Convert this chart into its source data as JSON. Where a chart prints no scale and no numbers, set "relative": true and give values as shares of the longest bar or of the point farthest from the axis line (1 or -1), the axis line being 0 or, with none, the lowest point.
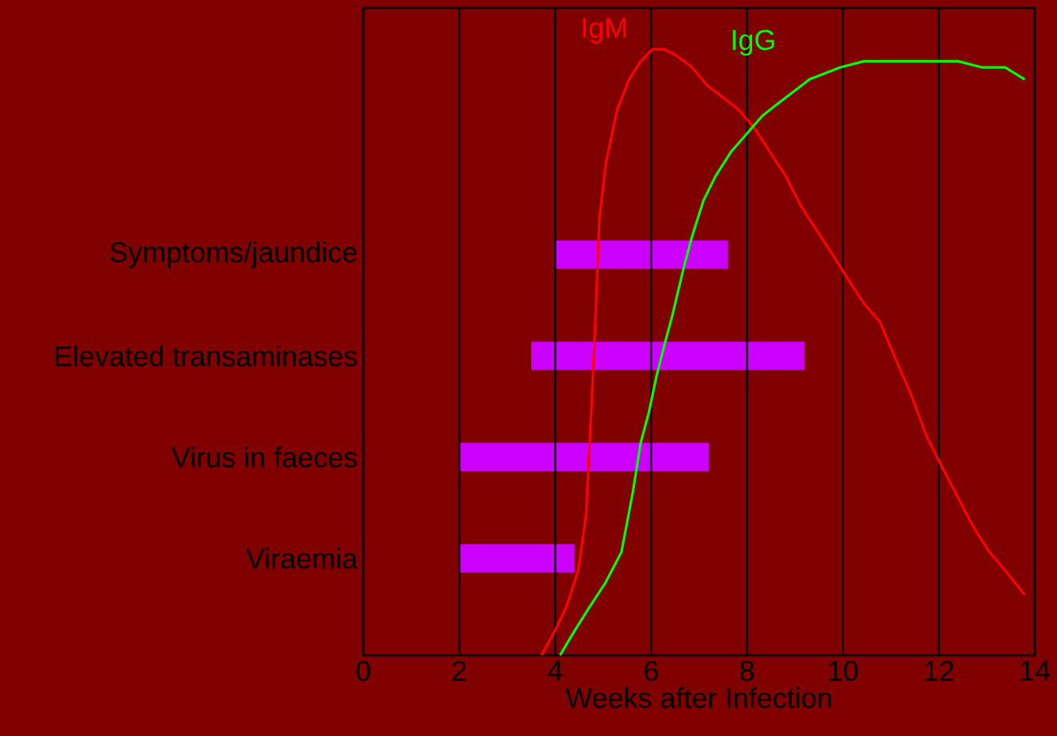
{
  "chart_data": [
    {
      "type": "bar",
      "orientation": "horizontal",
      "xlabel": "Weeks after Infection",
      "categories": [
        "Symptoms/jaundice",
        "Elevated transaminases",
        "Virus in faeces",
        "Viraemia"
      ],
      "base": [
        4,
        3.5,
        2,
        2
      ],
      "values": [
        3.6,
        5.7,
        5.2,
        2.4
      ],
      "color": "#cc00ff",
      "xlim": [
        0,
        14
      ],
      "xticks": [
        0,
        2,
        4,
        6,
        8,
        10,
        12,
        14
      ]
    },
    {
      "type": "line",
      "relative": true,
      "xlim": [
        0,
        14
      ],
      "xticks": [
        0,
        2,
        4,
        6,
        8,
        10,
        12,
        14
      ],
      "grid": "x",
      "tick_labels": false,
      "series": [
        {
          "name": "IgM",
          "color": "#ff0000",
          "x": [
            3.71,
            3.99,
            4.23,
            4.48,
            4.64,
            4.75,
            4.84,
            4.92,
            5.05,
            5.29,
            5.54,
            5.78,
            6.03,
            6.27,
            6.52,
            6.85,
            7.17,
            7.5,
            7.83,
            8.15,
            8.48,
            8.81,
            9.13,
            9.46,
            9.79,
            10.11,
            10.44,
            10.77,
            11.09,
            11.42,
            11.75,
            12.07,
            12.4,
            12.73,
            13.06,
            13.38,
            13.79
          ],
          "values": [
            0,
            0.04,
            0.08,
            0.14,
            0.23,
            0.4,
            0.56,
            0.72,
            0.81,
            0.9,
            0.95,
            0.98,
            1,
            1,
            0.99,
            0.97,
            0.94,
            0.92,
            0.9,
            0.87,
            0.83,
            0.79,
            0.74,
            0.7,
            0.66,
            0.62,
            0.58,
            0.55,
            0.49,
            0.43,
            0.36,
            0.31,
            0.26,
            0.21,
            0.17,
            0.14,
            0.1
          ]
        },
        {
          "name": "IgG",
          "color": "#00ff00",
          "x": [
            4.1,
            4.4,
            4.72,
            5.05,
            5.38,
            5.62,
            5.78,
            5.95,
            6.11,
            6.27,
            6.44,
            6.68,
            6.85,
            7.09,
            7.34,
            7.66,
            7.99,
            8.32,
            8.64,
            8.97,
            9.3,
            9.62,
            9.95,
            10.44,
            10.93,
            11.42,
            11.91,
            12.4,
            12.89,
            13.38,
            13.79
          ],
          "values": [
            0,
            0.04,
            0.08,
            0.12,
            0.17,
            0.27,
            0.35,
            0.4,
            0.46,
            0.51,
            0.56,
            0.64,
            0.69,
            0.75,
            0.79,
            0.83,
            0.86,
            0.89,
            0.91,
            0.93,
            0.95,
            0.96,
            0.97,
            0.98,
            0.98,
            0.98,
            0.98,
            0.98,
            0.97,
            0.97,
            0.95
          ]
        }
      ]
    }
  ]
}
